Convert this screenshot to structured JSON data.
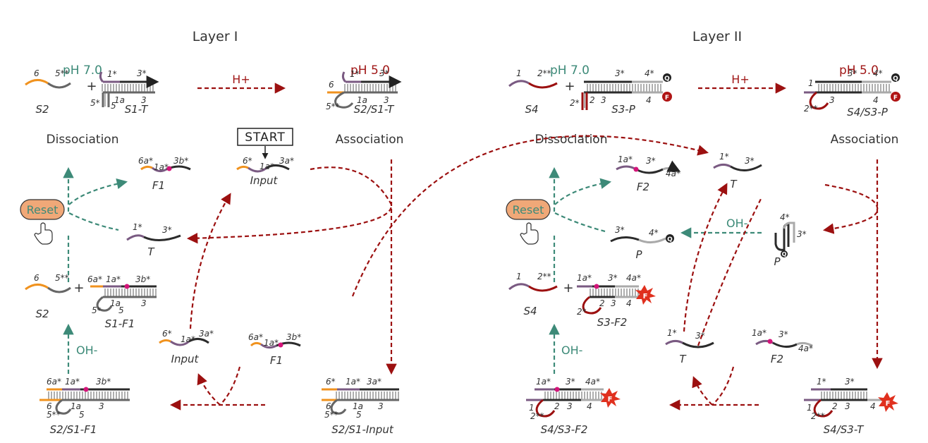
{
  "layers": {
    "layer1": "Layer I",
    "layer2": "Layer II"
  },
  "ph": {
    "neutral": "pH 7.0",
    "acidic": "pH 5.0"
  },
  "stages": {
    "dissociation": "Dissociation",
    "association": "Association"
  },
  "triggers": {
    "acid": "H+",
    "base": "OH-"
  },
  "buttons": {
    "start": "START",
    "reset": "Reset"
  },
  "complexes": {
    "s2": "S2",
    "s1t": "S1-T",
    "s2s1t": "S2/S1-T",
    "input": "Input",
    "f1": "F1",
    "t": "T",
    "s1f1": "S1-F1",
    "s2s1f1": "S2/S1-F1",
    "s2s1input": "S2/S1-Input",
    "s4": "S4",
    "s3p": "S3-P",
    "s4s3p": "S4/S3-P",
    "f2": "F2",
    "p": "P",
    "s3f2": "S3-F2",
    "s4s3f2": "S4/S3-F2",
    "s4s3t": "S4/S3-T"
  },
  "domains": {
    "d6": "6",
    "d5ss": "5**",
    "d1s": "1*",
    "d3s": "3*",
    "d5s": "5*",
    "d5": "5",
    "d1a": "1a",
    "d3": "3",
    "d6s": "6*",
    "d1as": "1a*",
    "d3as": "3a*",
    "d6as": "6a*",
    "d3bs": "3b*",
    "d1": "1",
    "d2ss": "2**",
    "d4s": "4*",
    "d2s": "2*",
    "d2": "2",
    "d4": "4",
    "d4as": "4a*"
  },
  "markers": {
    "quencher": "Q",
    "fluorophore": "F"
  },
  "colors": {
    "orange": "#f0921e",
    "purple": "#7a5a82",
    "dark": "#2b2b2b",
    "gray": "#9a9a9a",
    "red": "#9c1010",
    "teal": "#3d8a78",
    "magenta": "#d4157a",
    "reset_fill": "#f0a878"
  },
  "icons": [
    "hand-pointer-icon",
    "quencher-icon",
    "fluorophore-icon",
    "fluorescence-burst-icon"
  ]
}
